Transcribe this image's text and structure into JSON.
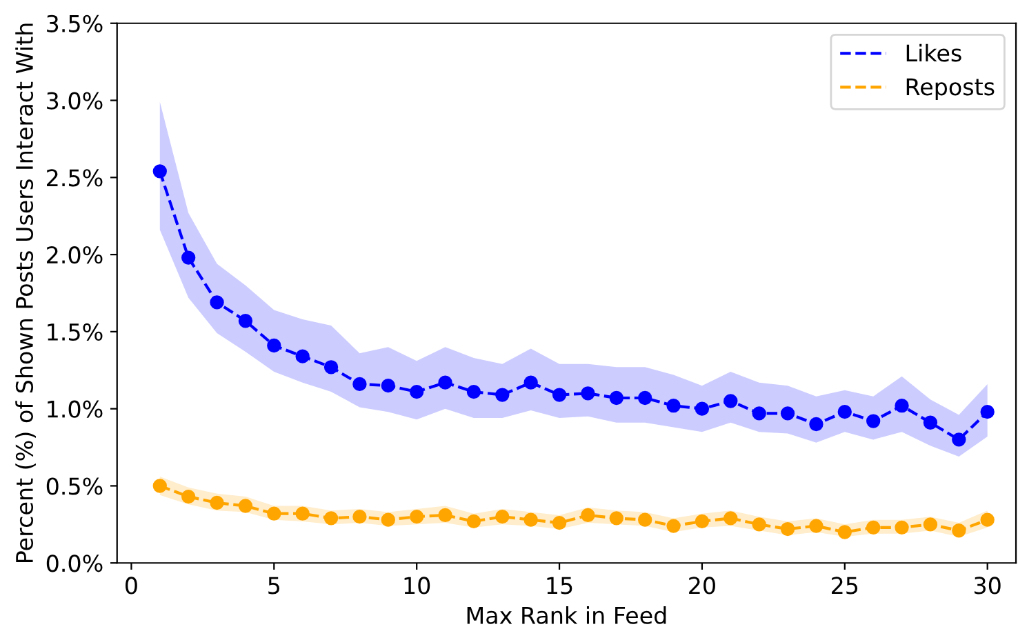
{
  "chart_data": {
    "type": "line",
    "xlabel": "Max Rank in Feed",
    "ylabel": "Percent (%) of Shown Posts Users Interact With",
    "x": [
      1,
      2,
      3,
      4,
      5,
      6,
      7,
      8,
      9,
      10,
      11,
      12,
      13,
      14,
      15,
      16,
      17,
      18,
      19,
      20,
      21,
      22,
      23,
      24,
      25,
      26,
      27,
      28,
      29,
      30
    ],
    "series": [
      {
        "name": "Likes",
        "color": "#0000ff",
        "values": [
          2.54,
          1.98,
          1.69,
          1.57,
          1.41,
          1.34,
          1.27,
          1.16,
          1.15,
          1.11,
          1.17,
          1.11,
          1.09,
          1.17,
          1.09,
          1.1,
          1.07,
          1.07,
          1.02,
          1.0,
          1.05,
          0.97,
          0.97,
          0.9,
          0.98,
          0.92,
          1.02,
          0.91,
          0.8,
          0.98
        ],
        "lower": [
          2.16,
          1.72,
          1.49,
          1.37,
          1.24,
          1.17,
          1.11,
          1.01,
          0.98,
          0.93,
          1.0,
          0.94,
          0.94,
          0.99,
          0.94,
          0.95,
          0.91,
          0.91,
          0.88,
          0.85,
          0.91,
          0.85,
          0.84,
          0.78,
          0.85,
          0.8,
          0.85,
          0.76,
          0.69,
          0.82
        ],
        "upper": [
          2.99,
          2.27,
          1.94,
          1.8,
          1.64,
          1.58,
          1.54,
          1.36,
          1.4,
          1.31,
          1.4,
          1.33,
          1.29,
          1.39,
          1.29,
          1.29,
          1.27,
          1.27,
          1.22,
          1.15,
          1.24,
          1.17,
          1.15,
          1.08,
          1.12,
          1.08,
          1.21,
          1.06,
          0.96,
          1.16
        ]
      },
      {
        "name": "Reposts",
        "color": "#ffa500",
        "values": [
          0.5,
          0.43,
          0.39,
          0.37,
          0.32,
          0.32,
          0.29,
          0.3,
          0.28,
          0.3,
          0.31,
          0.27,
          0.3,
          0.28,
          0.26,
          0.31,
          0.29,
          0.28,
          0.24,
          0.27,
          0.29,
          0.25,
          0.22,
          0.24,
          0.2,
          0.23,
          0.23,
          0.25,
          0.21,
          0.28
        ],
        "lower": [
          0.44,
          0.38,
          0.34,
          0.33,
          0.28,
          0.27,
          0.25,
          0.26,
          0.24,
          0.25,
          0.26,
          0.23,
          0.25,
          0.24,
          0.22,
          0.26,
          0.25,
          0.24,
          0.2,
          0.23,
          0.24,
          0.21,
          0.18,
          0.2,
          0.17,
          0.19,
          0.19,
          0.21,
          0.17,
          0.23
        ],
        "upper": [
          0.56,
          0.49,
          0.45,
          0.43,
          0.37,
          0.37,
          0.34,
          0.35,
          0.33,
          0.35,
          0.37,
          0.32,
          0.35,
          0.33,
          0.31,
          0.36,
          0.34,
          0.33,
          0.29,
          0.32,
          0.34,
          0.3,
          0.27,
          0.29,
          0.25,
          0.28,
          0.28,
          0.3,
          0.26,
          0.34
        ]
      }
    ],
    "xlim": [
      -0.5,
      31.0
    ],
    "xticks": [
      0,
      5,
      10,
      15,
      20,
      25,
      30
    ],
    "ylim": [
      0,
      3.5
    ],
    "yticks": [
      {
        "value": 0,
        "label": "0.0%"
      },
      {
        "value": 0.5,
        "label": "0.5%"
      },
      {
        "value": 1.0,
        "label": "1.0%"
      },
      {
        "value": 1.5,
        "label": "1.5%"
      },
      {
        "value": 2.0,
        "label": "2.0%"
      },
      {
        "value": 2.5,
        "label": "2.5%"
      },
      {
        "value": 3.0,
        "label": "3.0%"
      },
      {
        "value": 3.5,
        "label": "3.5%"
      }
    ],
    "marker": "circle",
    "line_style": "dashed",
    "legend": "top right",
    "grid": false
  }
}
